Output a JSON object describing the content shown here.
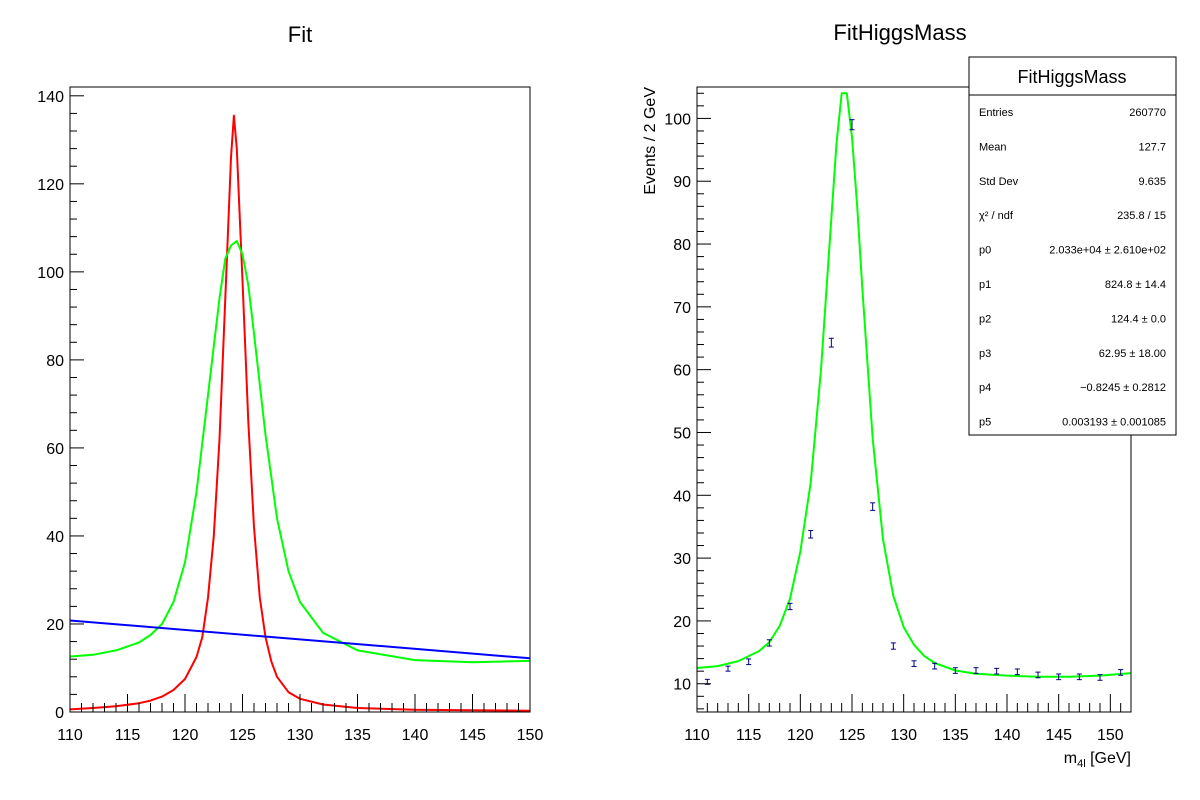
{
  "chart_data": [
    {
      "type": "line",
      "title": "Fit",
      "xlabel": "",
      "ylabel": "",
      "xlim": [
        110,
        150
      ],
      "ylim": [
        0,
        142
      ],
      "x_ticks": [
        "110",
        "115",
        "120",
        "125",
        "130",
        "135",
        "140",
        "145",
        "150"
      ],
      "y_ticks": [
        "0",
        "20",
        "40",
        "60",
        "80",
        "100",
        "120",
        "140"
      ],
      "grid": false,
      "series": [
        {
          "color": "#ff0000",
          "x": [
            110,
            112,
            114,
            116,
            117,
            118,
            119,
            120,
            121,
            121.5,
            122,
            122.5,
            123,
            123.5,
            124,
            124.25,
            124.5,
            125,
            125.5,
            126,
            126.5,
            127,
            127.5,
            128,
            129,
            130,
            132,
            135,
            140,
            145,
            150
          ],
          "y": [
            0.6,
            0.9,
            1.3,
            2.0,
            2.6,
            3.5,
            5.0,
            7.5,
            12.5,
            17,
            26,
            40,
            62,
            94,
            126,
            135.5,
            128,
            98,
            66,
            42,
            26,
            17,
            11.5,
            8,
            4.5,
            3.0,
            1.7,
            0.9,
            0.5,
            0.4,
            0.3
          ]
        },
        {
          "color": "#00ff00",
          "x": [
            110,
            112,
            114,
            116,
            117,
            118,
            119,
            120,
            121,
            122,
            123,
            123.5,
            124,
            124.5,
            125,
            125.5,
            126,
            127,
            128,
            129,
            130,
            132,
            135,
            140,
            145,
            150
          ],
          "y": [
            12.6,
            13.0,
            14.0,
            15.8,
            17.5,
            20,
            25,
            34,
            50,
            72,
            94,
            103,
            106,
            107,
            104,
            97,
            86,
            63,
            44,
            32,
            25,
            18,
            14,
            11.8,
            11.3,
            11.6
          ]
        },
        {
          "color": "#0000ff",
          "x": [
            110,
            150
          ],
          "y": [
            20.8,
            12.2
          ]
        }
      ]
    },
    {
      "type": "scatter",
      "title": "FitHiggsMass",
      "xlabel": "m_4l [GeV]",
      "ylabel": "Events / 2 GeV",
      "xlim": [
        110,
        152
      ],
      "ylim": [
        5.5,
        105
      ],
      "x_ticks": [
        "110",
        "115",
        "120",
        "125",
        "130",
        "135",
        "140",
        "145",
        "150"
      ],
      "y_ticks": [
        "10",
        "20",
        "30",
        "40",
        "50",
        "60",
        "70",
        "80",
        "90",
        "100"
      ],
      "grid": false,
      "data_points": {
        "color": "#000080",
        "x": [
          111,
          113,
          115,
          117,
          119,
          121,
          123,
          125,
          127,
          129,
          131,
          133,
          135,
          137,
          139,
          141,
          143,
          145,
          147,
          149,
          151
        ],
        "y": [
          10.3,
          12.4,
          13.5,
          16.5,
          22.3,
          33.8,
          64.3,
          99.0,
          38.2,
          16.0,
          13.2,
          12.8,
          12.1,
          12.1,
          12.0,
          11.9,
          11.4,
          11.1,
          11.1,
          11.0,
          11.8
        ],
        "err": [
          0.4,
          0.4,
          0.45,
          0.5,
          0.5,
          0.6,
          0.7,
          0.8,
          0.6,
          0.5,
          0.45,
          0.45,
          0.45,
          0.45,
          0.45,
          0.45,
          0.45,
          0.45,
          0.45,
          0.45,
          0.45
        ]
      },
      "fit_curve": {
        "color": "#00ff00",
        "x": [
          110,
          112,
          114,
          116,
          117,
          118,
          119,
          120,
          121,
          122,
          123,
          123.5,
          124,
          124.5,
          125,
          125.5,
          126,
          127,
          128,
          129,
          130,
          131,
          132,
          133,
          135,
          137,
          140,
          143,
          146,
          149,
          152
        ],
        "y": [
          12.5,
          12.8,
          13.6,
          15.2,
          16.6,
          19.2,
          23.5,
          31,
          42,
          60,
          84,
          96,
          104,
          104,
          97,
          86,
          73,
          49,
          33,
          24,
          19,
          16.2,
          14.4,
          13.3,
          12.1,
          11.6,
          11.3,
          11.1,
          11.1,
          11.3,
          11.7
        ]
      },
      "stats_box": {
        "title": "FitHiggsMass",
        "rows": [
          {
            "label": "Entries",
            "value": "260770"
          },
          {
            "label": "Mean",
            "value": "127.7"
          },
          {
            "label": "Std Dev",
            "value": "9.635"
          },
          {
            "label": "χ² / ndf",
            "value": "235.8 / 15"
          },
          {
            "label": "p0",
            "value": "2.033e+04 ± 2.610e+02"
          },
          {
            "label": "p1",
            "value": "824.8 ± 14.4"
          },
          {
            "label": "p2",
            "value": "124.4 ± 0.0"
          },
          {
            "label": "p3",
            "value": "62.95 ± 18.00"
          },
          {
            "label": "p4",
            "value": "−0.8245 ± 0.2812"
          },
          {
            "label": "p5",
            "value": "0.003193 ± 0.001085"
          }
        ]
      }
    }
  ]
}
